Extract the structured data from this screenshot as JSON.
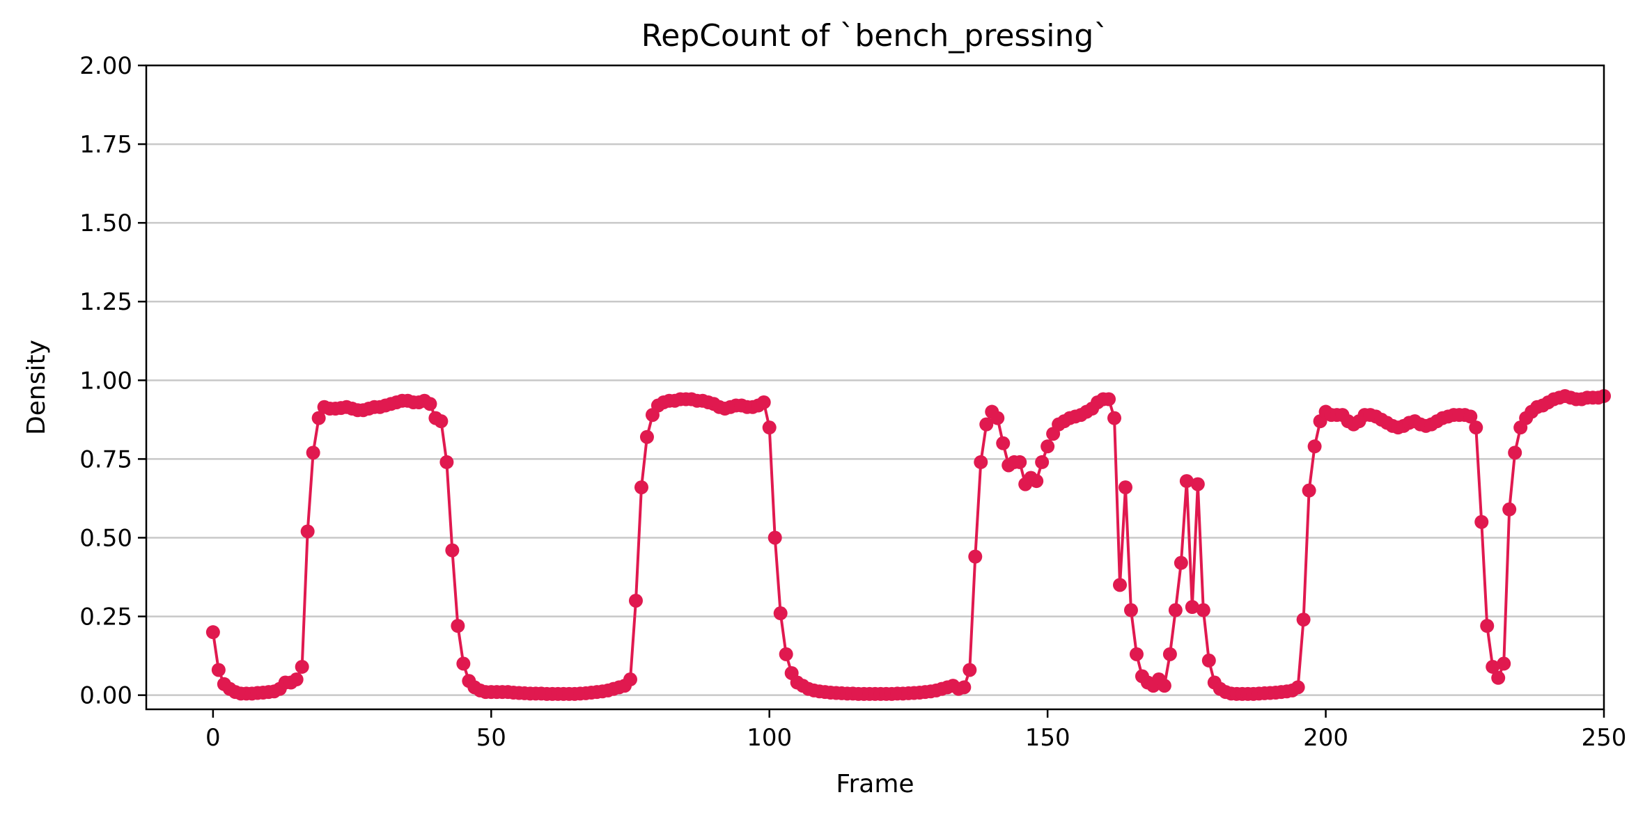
{
  "chart_data": {
    "type": "line",
    "title": "RepCount of `bench_pressing`",
    "xlabel": "Frame",
    "ylabel": "Density",
    "xlim": [
      -12,
      250
    ],
    "ylim": [
      -0.045,
      2.0
    ],
    "xticks": [
      0,
      50,
      100,
      150,
      200,
      250
    ],
    "yticks": [
      0.0,
      0.25,
      0.5,
      0.75,
      1.0,
      1.25,
      1.5,
      1.75,
      2.0
    ],
    "xtick_labels": [
      "0",
      "50",
      "100",
      "150",
      "200",
      "250"
    ],
    "ytick_labels": [
      "0.00",
      "0.25",
      "0.50",
      "0.75",
      "1.00",
      "1.25",
      "1.50",
      "1.75",
      "2.00"
    ],
    "grid": "horizontal",
    "line_color": "#e0194f",
    "marker": "circle",
    "series": [
      {
        "values": [
          0.2,
          0.08,
          0.035,
          0.02,
          0.01,
          0.005,
          0.005,
          0.005,
          0.007,
          0.008,
          0.01,
          0.012,
          0.02,
          0.04,
          0.04,
          0.05,
          0.09,
          0.52,
          0.77,
          0.88,
          0.915,
          0.91,
          0.91,
          0.912,
          0.915,
          0.91,
          0.905,
          0.905,
          0.91,
          0.915,
          0.915,
          0.92,
          0.925,
          0.93,
          0.935,
          0.935,
          0.93,
          0.93,
          0.935,
          0.925,
          0.88,
          0.87,
          0.74,
          0.46,
          0.22,
          0.1,
          0.045,
          0.025,
          0.015,
          0.01,
          0.01,
          0.01,
          0.01,
          0.01,
          0.008,
          0.007,
          0.006,
          0.005,
          0.005,
          0.005,
          0.004,
          0.004,
          0.004,
          0.004,
          0.004,
          0.004,
          0.005,
          0.006,
          0.008,
          0.01,
          0.012,
          0.015,
          0.02,
          0.025,
          0.03,
          0.05,
          0.3,
          0.66,
          0.82,
          0.89,
          0.92,
          0.93,
          0.935,
          0.935,
          0.94,
          0.94,
          0.94,
          0.935,
          0.935,
          0.93,
          0.925,
          0.915,
          0.91,
          0.915,
          0.92,
          0.92,
          0.915,
          0.915,
          0.92,
          0.93,
          0.85,
          0.5,
          0.26,
          0.13,
          0.07,
          0.04,
          0.03,
          0.02,
          0.015,
          0.012,
          0.01,
          0.008,
          0.007,
          0.006,
          0.005,
          0.005,
          0.004,
          0.004,
          0.004,
          0.004,
          0.004,
          0.004,
          0.004,
          0.005,
          0.005,
          0.006,
          0.007,
          0.008,
          0.01,
          0.012,
          0.015,
          0.02,
          0.025,
          0.03,
          0.02,
          0.025,
          0.08,
          0.44,
          0.74,
          0.86,
          0.9,
          0.88,
          0.8,
          0.73,
          0.74,
          0.74,
          0.67,
          0.69,
          0.68,
          0.74,
          0.79,
          0.83,
          0.86,
          0.87,
          0.88,
          0.885,
          0.89,
          0.9,
          0.91,
          0.93,
          0.94,
          0.94,
          0.88,
          0.35,
          0.66,
          0.27,
          0.13,
          0.06,
          0.04,
          0.03,
          0.05,
          0.03,
          0.13,
          0.27,
          0.42,
          0.68,
          0.28,
          0.67,
          0.27,
          0.11,
          0.04,
          0.02,
          0.01,
          0.005,
          0.004,
          0.004,
          0.004,
          0.004,
          0.005,
          0.006,
          0.007,
          0.008,
          0.01,
          0.012,
          0.015,
          0.025,
          0.24,
          0.65,
          0.79,
          0.87,
          0.9,
          0.89,
          0.89,
          0.89,
          0.87,
          0.86,
          0.87,
          0.89,
          0.89,
          0.885,
          0.875,
          0.865,
          0.855,
          0.85,
          0.855,
          0.865,
          0.87,
          0.86,
          0.855,
          0.86,
          0.87,
          0.88,
          0.885,
          0.89,
          0.89,
          0.89,
          0.885,
          0.85,
          0.55,
          0.22,
          0.09,
          0.055,
          0.1,
          0.59,
          0.77,
          0.85,
          0.88,
          0.9,
          0.915,
          0.92,
          0.93,
          0.94,
          0.945,
          0.95,
          0.945,
          0.94,
          0.94,
          0.945,
          0.945,
          0.945,
          0.95
        ]
      }
    ]
  }
}
